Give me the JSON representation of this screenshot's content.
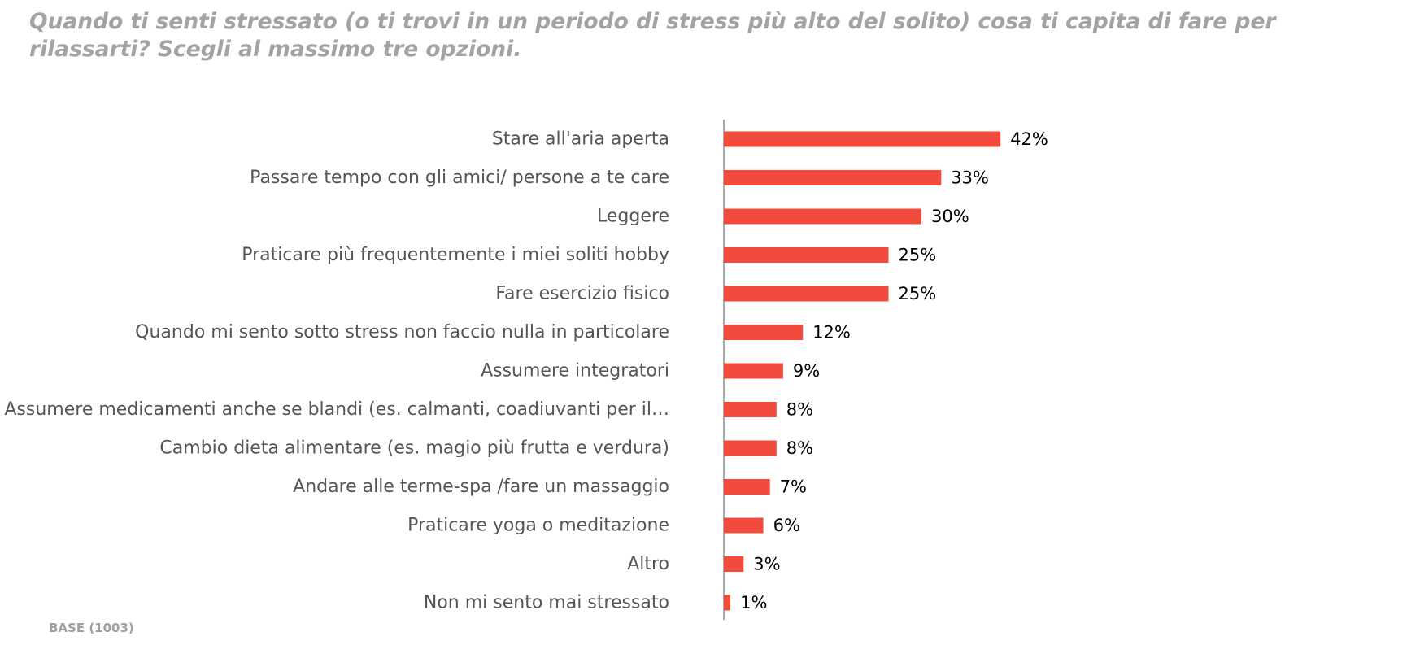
{
  "title": "Quando ti senti stressato (o ti trovi in un periodo di stress più alto del solito) cosa ti capita di fare per rilassarti? Scegli al massimo tre opzioni.",
  "base_note": "BASE (1003)",
  "chart_data": {
    "type": "bar",
    "orientation": "horizontal",
    "title": "Quando ti senti stressato (o ti trovi in un periodo di stress più alto del solito) cosa ti capita di fare per rilassarti? Scegli al massimo tre opzioni.",
    "categories": [
      "Stare all'aria aperta",
      "Passare tempo con gli amici/ persone a te care",
      "Leggere",
      "Praticare più frequentemente i miei soliti hobby",
      "Fare esercizio fisico",
      "Quando mi sento sotto stress non faccio nulla in particolare",
      "Assumere integratori",
      "Assumere medicamenti anche se blandi (es. calmanti, coadiuvanti per il…",
      "Cambio dieta alimentare (es. magio più frutta e verdura)",
      "Andare alle terme-spa /fare un massaggio",
      "Praticare yoga o meditazione",
      "Altro",
      "Non mi sento mai stressato"
    ],
    "values": [
      42,
      33,
      30,
      25,
      25,
      12,
      9,
      8,
      8,
      7,
      6,
      3,
      1
    ],
    "value_labels": [
      "42%",
      "33%",
      "30%",
      "25%",
      "25%",
      "12%",
      "9%",
      "8%",
      "8%",
      "7%",
      "6%",
      "3%",
      "1%"
    ],
    "unit": "%",
    "xlim": [
      0,
      100
    ],
    "grid": false,
    "legend": "none",
    "bar_color": "#f24a3d"
  }
}
